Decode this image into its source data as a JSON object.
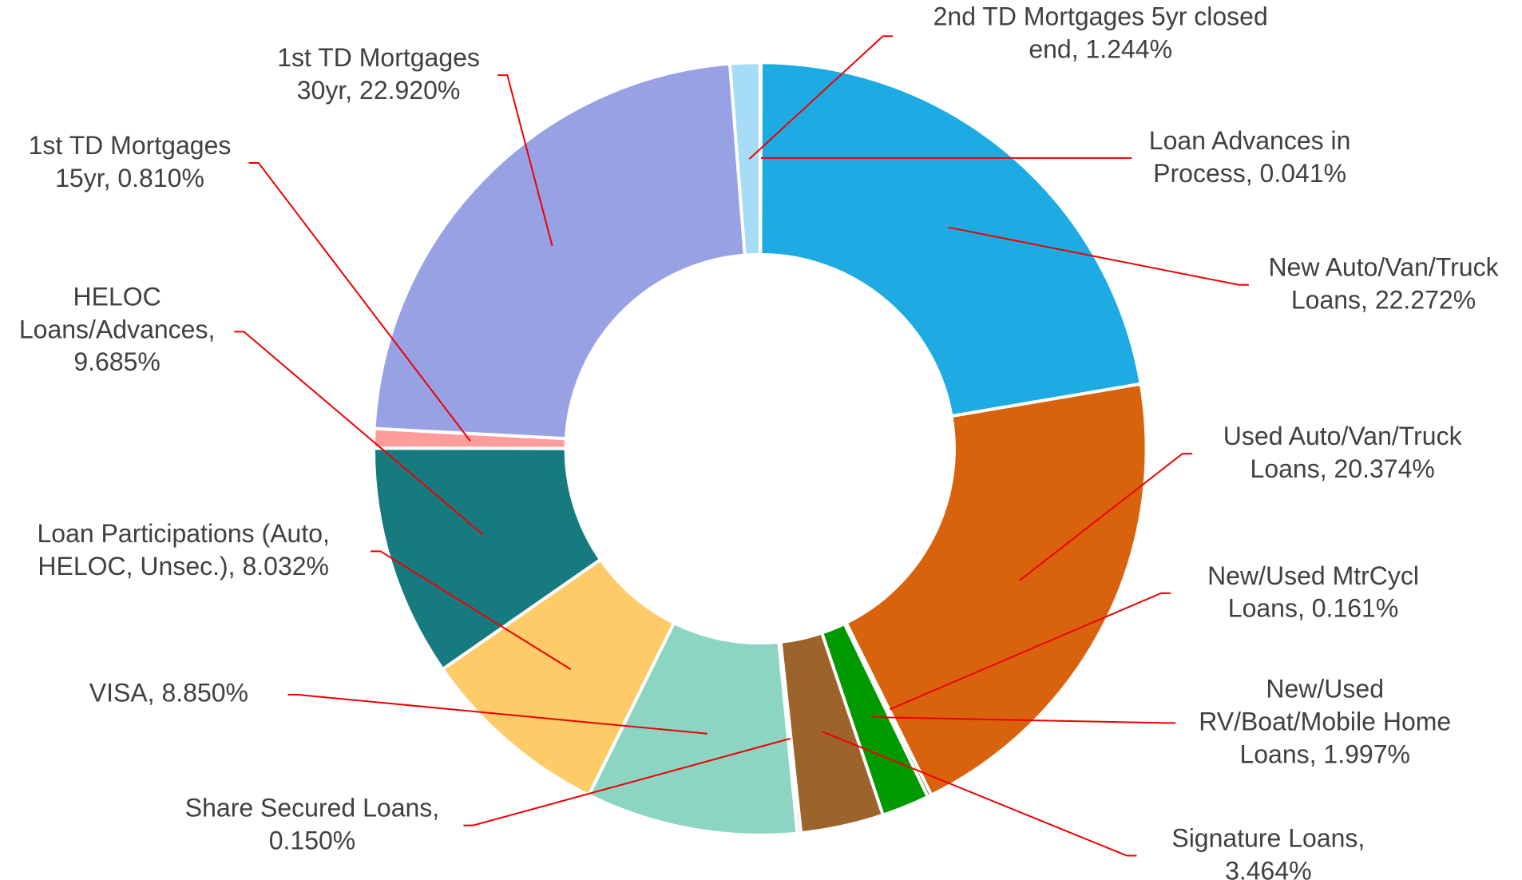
{
  "chart_data": {
    "type": "donut",
    "value_labels": [
      [
        "Loan Advances in",
        "Process, 0.041%"
      ],
      [
        "New Auto/Van/Truck",
        "Loans, 22.272%"
      ],
      [
        "Used Auto/Van/Truck",
        "Loans, 20.374%"
      ],
      [
        "New/Used MtrCycl",
        "Loans, 0.161%"
      ],
      [
        "New/Used",
        "RV/Boat/Mobile Home",
        "Loans, 1.997%"
      ],
      [
        "Signature Loans,",
        "3.464%"
      ],
      [
        "Share Secured Loans,",
        "0.150%"
      ],
      [
        "VISA, 8.850%"
      ],
      [
        "Loan Participations (Auto,",
        "HELOC, Unsec.), 8.032%"
      ],
      [
        "HELOC",
        "Loans/Advances,",
        "9.685%"
      ],
      [
        "1st TD Mortgages",
        "15yr, 0.810%"
      ],
      [
        "1st TD Mortgages",
        "30yr, 22.920%"
      ],
      [
        "2nd TD Mortgages 5yr closed",
        "end, 1.244%"
      ]
    ],
    "values": [
      0.041,
      22.272,
      20.374,
      0.161,
      1.997,
      3.464,
      0.15,
      8.85,
      8.032,
      9.685,
      0.81,
      22.92,
      1.244
    ],
    "colors": [
      "#1eabe3",
      "#1eabe3",
      "#d9620d",
      "#2e7d32",
      "#009900",
      "#9c632b",
      "#c9a06a",
      "#8dd5c3",
      "#fdcb67",
      "#177a7e",
      "#ff9c9c",
      "#99a1e5",
      "#a6dcf5"
    ],
    "leader_color": "#ee0000"
  }
}
